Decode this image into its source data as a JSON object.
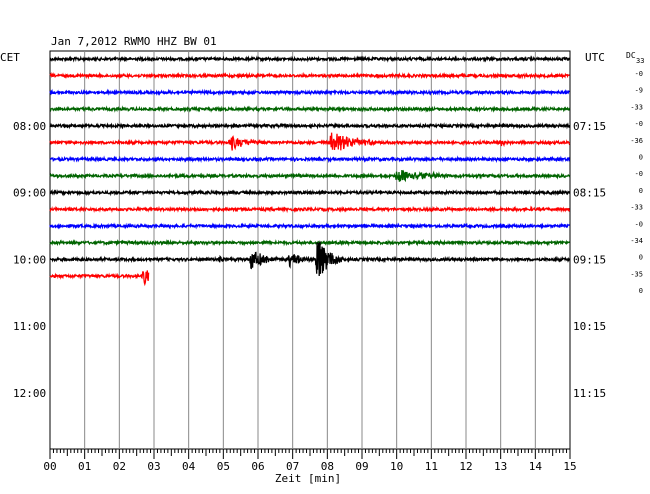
{
  "header": {
    "title": "Jan 7,2012   RWMO HHZ BW 01",
    "left_timezone": "CET",
    "right_timezone": "UTC",
    "dc_label": "DC",
    "dc_value": "33"
  },
  "chart_data": {
    "type": "line",
    "title": "Jan 7,2012   RWMO HHZ BW 01",
    "xlabel": "Zeit [min]",
    "ylabel": "",
    "x_ticks": [
      "00",
      "01",
      "02",
      "03",
      "04",
      "05",
      "06",
      "07",
      "08",
      "09",
      "10",
      "11",
      "12",
      "13",
      "14",
      "15"
    ],
    "xlim": [
      0,
      15
    ],
    "left_time_labels": [
      {
        "row": 4,
        "label": "08:00"
      },
      {
        "row": 8,
        "label": "09:00"
      },
      {
        "row": 12,
        "label": "10:00"
      },
      {
        "row": 16,
        "label": "11:00"
      },
      {
        "row": 20,
        "label": "12:00"
      }
    ],
    "right_time_labels": [
      {
        "row": 4,
        "label": "07:15"
      },
      {
        "row": 8,
        "label": "08:15"
      },
      {
        "row": 12,
        "label": "09:15"
      },
      {
        "row": 16,
        "label": "10:15"
      },
      {
        "row": 20,
        "label": "11:15"
      }
    ],
    "row_offsets": [
      "-0",
      "-9",
      "-33",
      "-0",
      "-36",
      "0",
      "-0",
      "0",
      "-33",
      "-0",
      "-34",
      "0",
      "-35",
      "0"
    ],
    "trace_colors": [
      "#000000",
      "#ff0000",
      "#0000ff",
      "#006400"
    ],
    "traces": [
      {
        "row": 0,
        "color": "#000000",
        "end_min": 15,
        "events": []
      },
      {
        "row": 1,
        "color": "#ff0000",
        "end_min": 15,
        "events": []
      },
      {
        "row": 2,
        "color": "#0000ff",
        "end_min": 15,
        "events": []
      },
      {
        "row": 3,
        "color": "#006400",
        "end_min": 15,
        "events": []
      },
      {
        "row": 4,
        "color": "#000000",
        "end_min": 15,
        "events": []
      },
      {
        "row": 5,
        "color": "#ff0000",
        "end_min": 15,
        "events": [
          {
            "t": 5.2,
            "amp": 0.5,
            "dur": 0.4
          },
          {
            "t": 8.1,
            "amp": 0.65,
            "dur": 0.7
          },
          {
            "t": 13.0,
            "amp": 0.3,
            "dur": 0.1
          }
        ]
      },
      {
        "row": 6,
        "color": "#0000ff",
        "end_min": 15,
        "events": []
      },
      {
        "row": 7,
        "color": "#006400",
        "end_min": 15,
        "events": [
          {
            "t": 10.0,
            "amp": 0.45,
            "dur": 0.9
          }
        ]
      },
      {
        "row": 8,
        "color": "#000000",
        "end_min": 15,
        "events": []
      },
      {
        "row": 9,
        "color": "#ff0000",
        "end_min": 15,
        "events": []
      },
      {
        "row": 10,
        "color": "#0000ff",
        "end_min": 15,
        "events": []
      },
      {
        "row": 11,
        "color": "#006400",
        "end_min": 15,
        "events": []
      },
      {
        "row": 12,
        "color": "#000000",
        "end_min": 15,
        "events": [
          {
            "t": 4.9,
            "amp": 0.25,
            "dur": 0.1
          },
          {
            "t": 5.8,
            "amp": 0.75,
            "dur": 0.3
          },
          {
            "t": 6.9,
            "amp": 0.55,
            "dur": 0.3
          },
          {
            "t": 7.7,
            "amp": 1.6,
            "dur": 0.3
          }
        ]
      },
      {
        "row": 13,
        "color": "#ff0000",
        "end_min": 2.85,
        "events": [
          {
            "t": 2.7,
            "amp": 0.6,
            "dur": 0.25
          }
        ]
      }
    ]
  }
}
